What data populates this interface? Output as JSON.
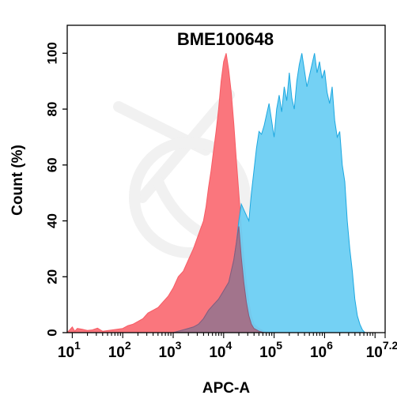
{
  "chart_data": {
    "type": "area",
    "title": "BME100648",
    "xlabel": "APC-A",
    "ylabel": "Count  (%)",
    "x_scale": "log10",
    "xlim": [
      0.9,
      7.2
    ],
    "ylim": [
      0,
      110
    ],
    "x_ticks": [
      {
        "value": 1,
        "base": "10",
        "exp": "1"
      },
      {
        "value": 2,
        "base": "10",
        "exp": "2"
      },
      {
        "value": 3,
        "base": "10",
        "exp": "3"
      },
      {
        "value": 4,
        "base": "10",
        "exp": "4"
      },
      {
        "value": 5,
        "base": "10",
        "exp": "5"
      },
      {
        "value": 6,
        "base": "10",
        "exp": "6"
      },
      {
        "value": 7.2,
        "base": "10",
        "exp": "7.2"
      }
    ],
    "y_ticks": [
      "0",
      "20",
      "40",
      "60",
      "80",
      "100"
    ],
    "grid": false,
    "series": [
      {
        "color": "#f75b64",
        "fill": "#fa6f76",
        "points": [
          [
            0.9,
            0
          ],
          [
            0.95,
            1
          ],
          [
            1.0,
            2
          ],
          [
            1.05,
            0.5
          ],
          [
            1.1,
            1.5
          ],
          [
            1.2,
            1.2
          ],
          [
            1.3,
            0.8
          ],
          [
            1.4,
            1
          ],
          [
            1.5,
            1.6
          ],
          [
            1.6,
            0.5
          ],
          [
            1.8,
            1
          ],
          [
            2.0,
            1.5
          ],
          [
            2.1,
            2.5
          ],
          [
            2.2,
            3
          ],
          [
            2.3,
            4
          ],
          [
            2.4,
            5
          ],
          [
            2.5,
            7
          ],
          [
            2.6,
            8
          ],
          [
            2.7,
            9
          ],
          [
            2.8,
            11
          ],
          [
            2.9,
            13
          ],
          [
            3.0,
            16
          ],
          [
            3.1,
            20
          ],
          [
            3.2,
            22
          ],
          [
            3.3,
            26
          ],
          [
            3.4,
            30
          ],
          [
            3.5,
            35
          ],
          [
            3.6,
            40
          ],
          [
            3.65,
            45
          ],
          [
            3.7,
            52
          ],
          [
            3.75,
            58
          ],
          [
            3.8,
            65
          ],
          [
            3.85,
            72
          ],
          [
            3.9,
            80
          ],
          [
            3.95,
            90
          ],
          [
            4.0,
            97
          ],
          [
            4.05,
            100
          ],
          [
            4.1,
            94
          ],
          [
            4.15,
            86
          ],
          [
            4.2,
            75
          ],
          [
            4.25,
            62
          ],
          [
            4.3,
            50
          ],
          [
            4.35,
            38
          ],
          [
            4.4,
            27
          ],
          [
            4.45,
            18
          ],
          [
            4.5,
            11
          ],
          [
            4.55,
            6
          ],
          [
            4.6,
            3
          ],
          [
            4.7,
            1.5
          ],
          [
            4.8,
            0.5
          ],
          [
            4.9,
            0
          ]
        ]
      },
      {
        "color": "#1ea8e0",
        "fill": "#6dcff3",
        "points": [
          [
            3.0,
            0
          ],
          [
            3.2,
            1
          ],
          [
            3.4,
            2
          ],
          [
            3.5,
            3
          ],
          [
            3.6,
            5
          ],
          [
            3.7,
            8
          ],
          [
            3.8,
            10
          ],
          [
            3.9,
            12
          ],
          [
            4.0,
            15
          ],
          [
            4.1,
            18
          ],
          [
            4.15,
            22
          ],
          [
            4.2,
            26
          ],
          [
            4.25,
            32
          ],
          [
            4.3,
            40
          ],
          [
            4.35,
            46
          ],
          [
            4.4,
            44
          ],
          [
            4.45,
            42
          ],
          [
            4.5,
            40
          ],
          [
            4.55,
            50
          ],
          [
            4.6,
            58
          ],
          [
            4.65,
            66
          ],
          [
            4.7,
            72
          ],
          [
            4.75,
            71
          ],
          [
            4.8,
            74
          ],
          [
            4.85,
            78
          ],
          [
            4.9,
            82
          ],
          [
            4.95,
            76
          ],
          [
            5.0,
            70
          ],
          [
            5.05,
            80
          ],
          [
            5.1,
            85
          ],
          [
            5.15,
            79
          ],
          [
            5.2,
            88
          ],
          [
            5.25,
            83
          ],
          [
            5.3,
            93
          ],
          [
            5.35,
            84
          ],
          [
            5.4,
            80
          ],
          [
            5.45,
            90
          ],
          [
            5.5,
            96
          ],
          [
            5.55,
            100
          ],
          [
            5.6,
            94
          ],
          [
            5.65,
            88
          ],
          [
            5.7,
            92
          ],
          [
            5.75,
            96
          ],
          [
            5.8,
            100
          ],
          [
            5.85,
            93
          ],
          [
            5.9,
            97
          ],
          [
            5.95,
            91
          ],
          [
            6.0,
            94
          ],
          [
            6.05,
            86
          ],
          [
            6.1,
            82
          ],
          [
            6.15,
            88
          ],
          [
            6.2,
            76
          ],
          [
            6.25,
            70
          ],
          [
            6.3,
            72
          ],
          [
            6.35,
            60
          ],
          [
            6.4,
            54
          ],
          [
            6.45,
            40
          ],
          [
            6.5,
            30
          ],
          [
            6.55,
            22
          ],
          [
            6.6,
            12
          ],
          [
            6.65,
            6
          ],
          [
            6.7,
            3
          ],
          [
            6.75,
            1
          ],
          [
            6.8,
            0
          ]
        ]
      },
      {
        "color": "#8a5a7a",
        "fill": "#a46f87",
        "points": [
          [
            3.0,
            0
          ],
          [
            3.2,
            1
          ],
          [
            3.4,
            2
          ],
          [
            3.5,
            3
          ],
          [
            3.6,
            5
          ],
          [
            3.7,
            8
          ],
          [
            3.8,
            10
          ],
          [
            3.9,
            12
          ],
          [
            4.0,
            15
          ],
          [
            4.1,
            18
          ],
          [
            4.15,
            22
          ],
          [
            4.2,
            26
          ],
          [
            4.25,
            32
          ],
          [
            4.3,
            38
          ],
          [
            4.35,
            27
          ],
          [
            4.4,
            18
          ],
          [
            4.45,
            11
          ],
          [
            4.5,
            6
          ],
          [
            4.55,
            3
          ],
          [
            4.6,
            1.5
          ],
          [
            4.7,
            0.5
          ],
          [
            4.8,
            0
          ]
        ]
      }
    ]
  }
}
